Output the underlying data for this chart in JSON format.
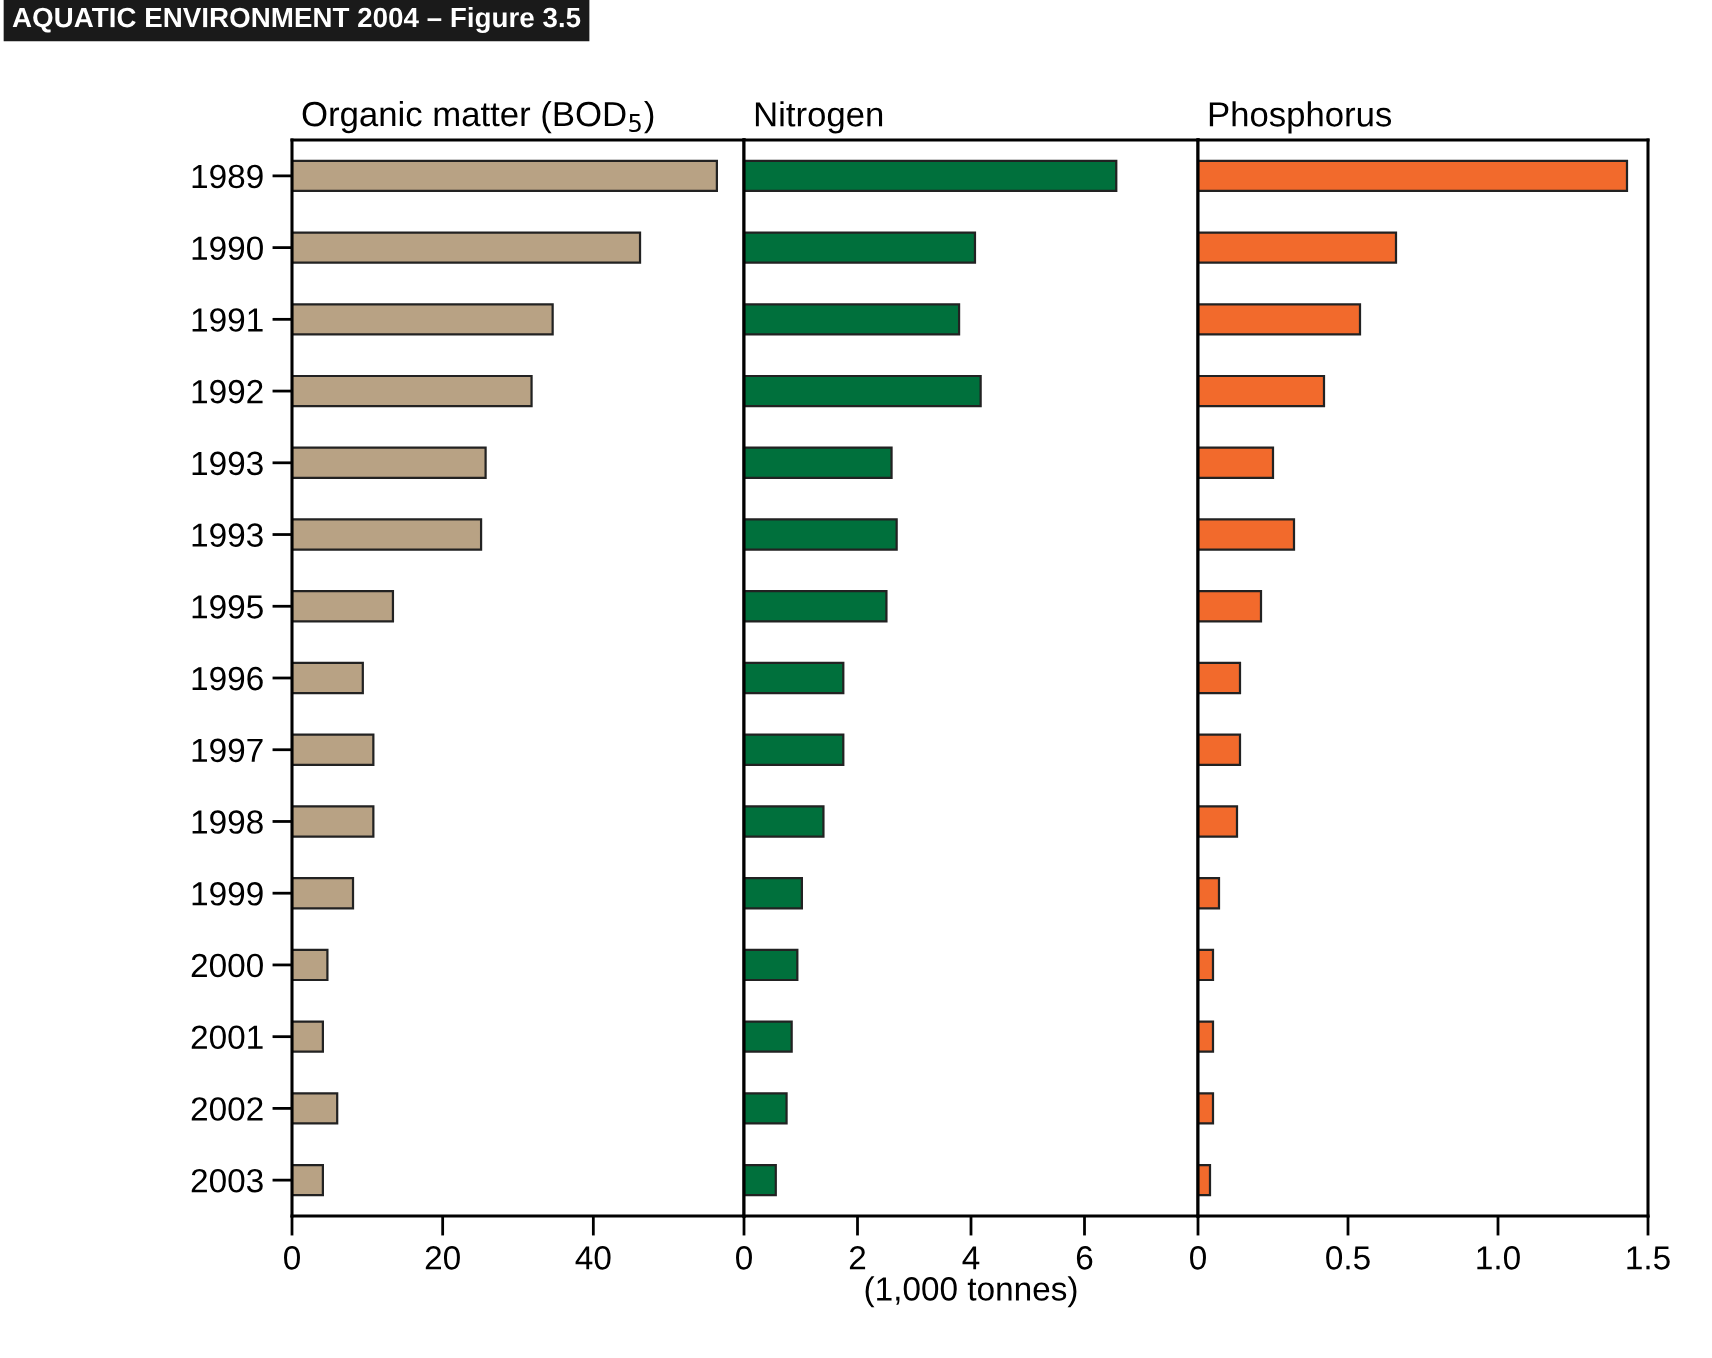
{
  "chart_data": [
    {
      "type": "bar",
      "orientation": "horizontal",
      "title": "Organic matter (BOD$_{5}$)",
      "annotations": [
        "AQUATIC ENVIRONMENT 2004 – Figure 3.5"
      ],
      "categories": [
        "1989",
        "1990",
        "1991",
        "1992",
        "1993",
        "1993",
        "1995",
        "1996",
        "1997",
        "1998",
        "1999",
        "2000",
        "2001",
        "2002",
        "2003"
      ],
      "values": [
        56.4,
        46.2,
        34.6,
        31.8,
        25.7,
        25.1,
        13.4,
        9.4,
        10.8,
        10.8,
        8.1,
        4.7,
        4.1,
        6.0,
        4.1
      ],
      "color": "#b8a284",
      "xlim": [
        0,
        60
      ],
      "xticks": [
        0,
        20,
        40
      ],
      "grid": false,
      "legend": false
    },
    {
      "type": "bar",
      "orientation": "horizontal",
      "title": "Nitrogen",
      "xlabel": "(1,000 tonnes)",
      "categories": [
        "1989",
        "1990",
        "1991",
        "1992",
        "1993",
        "1993",
        "1995",
        "1996",
        "1997",
        "1998",
        "1999",
        "2000",
        "2001",
        "2002",
        "2003"
      ],
      "values": [
        6.56,
        4.07,
        3.79,
        4.17,
        2.6,
        2.69,
        2.51,
        1.75,
        1.75,
        1.4,
        1.02,
        0.94,
        0.84,
        0.75,
        0.56
      ],
      "color": "#00703c",
      "xlim": [
        0,
        8
      ],
      "xticks": [
        0,
        2,
        4,
        6
      ],
      "tick_labels": "x",
      "grid": false,
      "legend": false
    },
    {
      "type": "bar",
      "orientation": "horizontal",
      "title": "Phosphorus",
      "categories": [
        "1989",
        "1990",
        "1991",
        "1992",
        "1993",
        "1993",
        "1995",
        "1996",
        "1997",
        "1998",
        "1999",
        "2000",
        "2001",
        "2002",
        "2003"
      ],
      "values": [
        1.43,
        0.66,
        0.54,
        0.42,
        0.25,
        0.32,
        0.21,
        0.14,
        0.14,
        0.13,
        0.07,
        0.05,
        0.05,
        0.05,
        0.04
      ],
      "color": "#f26a2c",
      "xlim": [
        0,
        1.5
      ],
      "xticks": [
        0,
        0.5,
        {
          "value": 1,
          "label": "1.0"
        },
        1.5
      ],
      "tick_labels": "x",
      "grid": false,
      "legend": false
    }
  ]
}
